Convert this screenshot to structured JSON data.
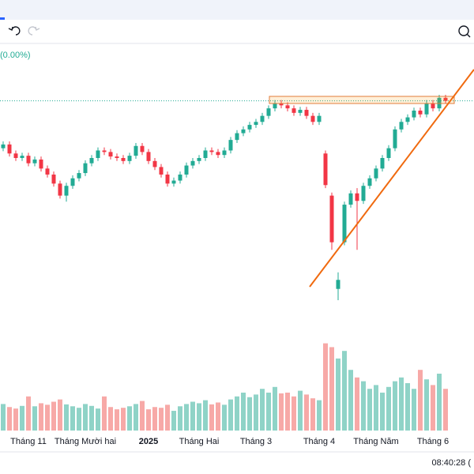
{
  "chart_data": {
    "type": "candlestick",
    "change_label": "(0.00%)",
    "up_color": "#22ab94",
    "down_color": "#f23645",
    "volume_up_color": "#8fd3c7",
    "volume_down_color": "#f7a9a7",
    "ylim": [
      1052,
      1409
    ],
    "vlim": [
      0,
      2500
    ],
    "categories": [
      null,
      null,
      null,
      null,
      "Tháng 11",
      null,
      null,
      null,
      null,
      null,
      null,
      null,
      null,
      "Tháng Mười hai",
      null,
      null,
      null,
      null,
      null,
      null,
      null,
      null,
      null,
      "2025",
      null,
      null,
      null,
      null,
      null,
      null,
      null,
      "Tháng Hai",
      null,
      null,
      null,
      null,
      null,
      null,
      null,
      null,
      "Tháng 3",
      null,
      null,
      null,
      null,
      null,
      null,
      null,
      null,
      null,
      "Tháng 4",
      null,
      null,
      null,
      null,
      null,
      null,
      null,
      null,
      "Tháng Năm",
      null,
      null,
      null,
      null,
      null,
      null,
      null,
      null,
      "Tháng 6",
      null,
      null
    ],
    "open": [
      1275,
      1280,
      1268,
      1262,
      1265,
      1255,
      1260,
      1248,
      1240,
      1228,
      1212,
      1225,
      1235,
      1242,
      1255,
      1262,
      1272,
      1270,
      1264,
      1262,
      1258,
      1265,
      1278,
      1270,
      1258,
      1250,
      1240,
      1228,
      1232,
      1240,
      1252,
      1258,
      1262,
      1272,
      1270,
      1266,
      1272,
      1286,
      1295,
      1300,
      1306,
      1310,
      1318,
      1328,
      1335,
      1332,
      1328,
      1322,
      1326,
      1318,
      1310,
      1268,
      1212,
      1088,
      1150,
      1200,
      1215,
      1205,
      1225,
      1235,
      1248,
      1262,
      1275,
      1300,
      1310,
      1316,
      1325,
      1320,
      1335,
      1328,
      1342
    ],
    "high": [
      1284,
      1284,
      1272,
      1269,
      1269,
      1264,
      1264,
      1252,
      1244,
      1232,
      1229,
      1239,
      1246,
      1259,
      1266,
      1276,
      1276,
      1274,
      1268,
      1266,
      1269,
      1282,
      1282,
      1274,
      1262,
      1254,
      1244,
      1236,
      1244,
      1256,
      1262,
      1266,
      1276,
      1276,
      1274,
      1276,
      1290,
      1299,
      1304,
      1310,
      1314,
      1322,
      1332,
      1339,
      1339,
      1336,
      1332,
      1330,
      1330,
      1322,
      1322,
      1272,
      1216,
      1110,
      1204,
      1219,
      1222,
      1229,
      1239,
      1252,
      1266,
      1279,
      1304,
      1314,
      1320,
      1329,
      1329,
      1339,
      1339,
      1346,
      1346
    ],
    "low": [
      1271,
      1264,
      1258,
      1258,
      1251,
      1251,
      1244,
      1236,
      1224,
      1208,
      1204,
      1221,
      1231,
      1238,
      1251,
      1258,
      1266,
      1260,
      1258,
      1254,
      1254,
      1261,
      1266,
      1254,
      1246,
      1236,
      1224,
      1224,
      1228,
      1236,
      1248,
      1254,
      1258,
      1266,
      1262,
      1262,
      1268,
      1282,
      1291,
      1296,
      1302,
      1306,
      1314,
      1324,
      1328,
      1324,
      1318,
      1318,
      1314,
      1306,
      1306,
      1222,
      1140,
      1073,
      1146,
      1196,
      1140,
      1201,
      1221,
      1231,
      1244,
      1258,
      1271,
      1296,
      1306,
      1312,
      1316,
      1316,
      1324,
      1324,
      1334
    ],
    "close": [
      1280,
      1268,
      1262,
      1265,
      1255,
      1260,
      1248,
      1240,
      1228,
      1212,
      1225,
      1235,
      1242,
      1255,
      1262,
      1272,
      1270,
      1264,
      1262,
      1258,
      1265,
      1278,
      1270,
      1258,
      1250,
      1240,
      1228,
      1232,
      1240,
      1252,
      1258,
      1262,
      1272,
      1270,
      1266,
      1272,
      1286,
      1295,
      1300,
      1306,
      1310,
      1318,
      1328,
      1335,
      1332,
      1328,
      1322,
      1326,
      1318,
      1310,
      1318,
      1226,
      1150,
      1100,
      1200,
      1215,
      1205,
      1225,
      1235,
      1248,
      1262,
      1275,
      1300,
      1310,
      1316,
      1325,
      1320,
      1335,
      1328,
      1342,
      1338
    ],
    "volume": [
      700,
      620,
      580,
      650,
      900,
      640,
      720,
      680,
      760,
      820,
      690,
      640,
      600,
      700,
      650,
      580,
      900,
      620,
      560,
      600,
      640,
      700,
      780,
      560,
      620,
      600,
      680,
      520,
      640,
      700,
      760,
      720,
      800,
      690,
      740,
      680,
      820,
      900,
      1000,
      880,
      950,
      1100,
      1000,
      1150,
      980,
      1000,
      900,
      1050,
      950,
      850,
      800,
      2300,
      2200,
      1900,
      2100,
      1600,
      1400,
      1300,
      1100,
      1200,
      1000,
      1150,
      1300,
      1400,
      1250,
      1100,
      1600,
      1350,
      1200,
      1500,
      1100
    ]
  },
  "status": {
    "time": "08:40:28 ("
  }
}
